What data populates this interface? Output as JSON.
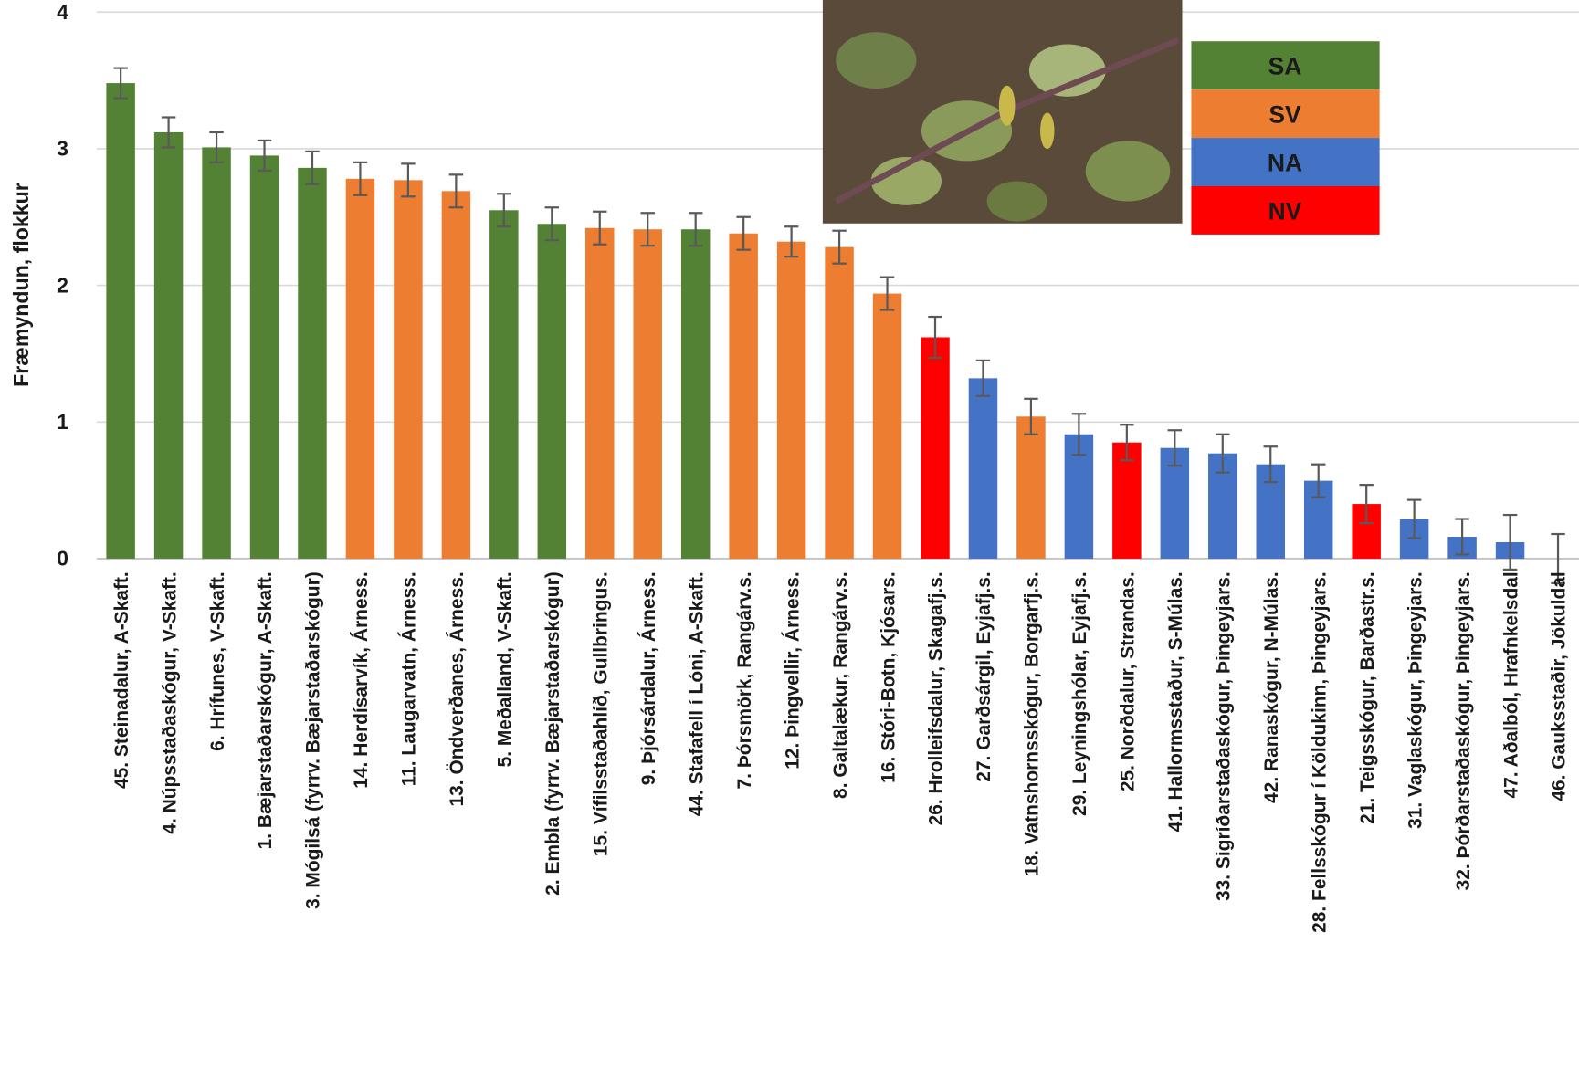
{
  "chart_data": {
    "type": "bar",
    "y_label": "Fræmyndun, flokkur",
    "categories": [
      "45. Steinadalur, A-Skaft.",
      "4. Núpsstaðaskógur, V-Skaft.",
      "6. Hrífunes, V-Skaft.",
      "1. Bæjarstaðarskógur, A-Skaft.",
      "3. Mógilsá (fyrrv. Bæjarstaðarskógur)",
      "14. Herdísarvík, Árness.",
      "11. Laugarvatn, Árness.",
      "13. Öndverðanes, Árness.",
      "5. Meðalland, V-Skaft.",
      "2. Embla (fyrrv. Bæjarstaðarskógur)",
      "15. Vífilsstaðahlíð, Gullbringus.",
      "9. Þjórsárdalur, Árness.",
      "44. Stafafell í Lóni, A-Skaft.",
      "7. Þórsmörk, Rangárv.s.",
      "12. Þingvellir, Árness.",
      "8. Galtalækur, Rangárv.s.",
      "16. Stóri-Botn, Kjósars.",
      "26. Hrolleifsdalur, Skagafj.s.",
      "27. Garðsárgil, Eyjafj.s.",
      "18. Vatnshornsskógur, Borgarfj.s.",
      "29. Leyningshólar, Eyjafj.s.",
      "25. Norðdalur, Strandas.",
      "41. Hallormsstaður, S-Múlas.",
      "33. Sigríðarstaðaskógur, Þingeyjars.",
      "42. Ranaskógur, N-Múlas.",
      "28. Fellsskógur í Köldukinn, Þingeyjars.",
      "21. Teigsskógur, Barðastr.s.",
      "31. Vaglaskógur, Þingeyjars.",
      "32. Þórðarstaðaskógur, Þingeyjars.",
      "47. Aðalból, Hrafnkelsdal",
      "46. Gauksstaðir, Jökuldal"
    ],
    "values": [
      3.48,
      3.12,
      3.01,
      2.95,
      2.86,
      2.78,
      2.77,
      2.69,
      2.55,
      2.45,
      2.42,
      2.41,
      2.41,
      2.38,
      2.32,
      2.28,
      1.94,
      1.62,
      1.32,
      1.04,
      0.91,
      0.85,
      0.81,
      0.77,
      0.69,
      0.57,
      0.4,
      0.29,
      0.16,
      0.12,
      0
    ],
    "errors": [
      0.11,
      0.11,
      0.11,
      0.11,
      0.12,
      0.12,
      0.12,
      0.12,
      0.12,
      0.12,
      0.12,
      0.12,
      0.12,
      0.12,
      0.11,
      0.12,
      0.12,
      0.15,
      0.13,
      0.13,
      0.15,
      0.13,
      0.13,
      0.14,
      0.13,
      0.12,
      0.14,
      0.14,
      0.13,
      0.2,
      0.18
    ],
    "regions": [
      "SA",
      "SA",
      "SA",
      "SA",
      "SA",
      "SV",
      "SV",
      "SV",
      "SA",
      "SA",
      "SV",
      "SV",
      "SA",
      "SV",
      "SV",
      "SV",
      "SV",
      "NV",
      "NA",
      "SV",
      "NA",
      "NV",
      "NA",
      "NA",
      "NA",
      "NA",
      "NV",
      "NA",
      "NA",
      "NA",
      "NA"
    ],
    "legend": [
      {
        "name": "SA",
        "color": "#548235"
      },
      {
        "name": "SV",
        "color": "#ed7d31"
      },
      {
        "name": "NA",
        "color": "#4472c4"
      },
      {
        "name": "NV",
        "color": "#ff0000"
      }
    ],
    "ylim": [
      0,
      4
    ],
    "yticks": [
      0,
      1,
      2,
      3,
      4
    ],
    "grid": true
  }
}
